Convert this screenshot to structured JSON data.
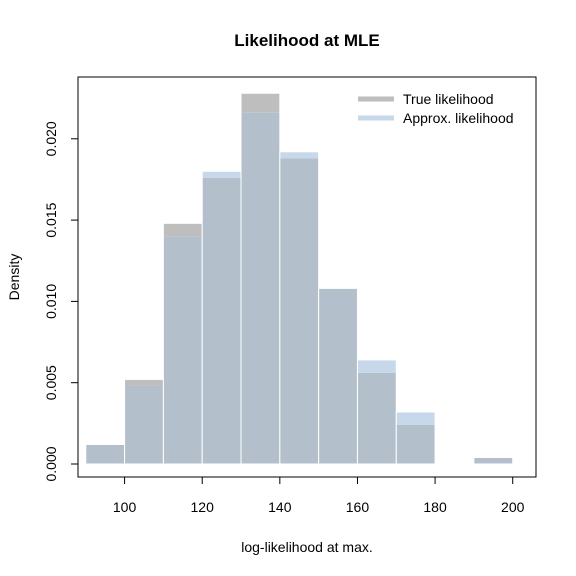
{
  "chart_data": {
    "type": "bar",
    "title": "Likelihood at MLE",
    "xlabel": "log-likelihood at max.",
    "ylabel": "Density",
    "xlim": [
      88,
      206
    ],
    "ylim": [
      -0.0008,
      0.0238
    ],
    "bin_edges": [
      90,
      100,
      110,
      120,
      130,
      140,
      150,
      160,
      170,
      180,
      190,
      200
    ],
    "x_ticks": [
      100,
      120,
      140,
      160,
      180,
      200
    ],
    "y_ticks": [
      0.0,
      0.005,
      0.01,
      0.015,
      0.02
    ],
    "y_tick_labels": [
      "0.000",
      "0.005",
      "0.010",
      "0.015",
      "0.020"
    ],
    "grid": false,
    "legend_position": "top-right",
    "series": [
      {
        "name": "True likelihood",
        "color": "#bebebe",
        "values": [
          0.0012,
          0.0052,
          0.0148,
          0.0176,
          0.0228,
          0.0188,
          0.0108,
          0.0056,
          0.0024,
          0.0,
          0.0004
        ]
      },
      {
        "name": "Approx. likelihood",
        "color": "#c6d8ea",
        "values": [
          0.0012,
          0.0048,
          0.014,
          0.018,
          0.0216,
          0.0192,
          0.0108,
          0.0064,
          0.0032,
          0.0,
          0.0004
        ]
      }
    ],
    "overlap_color": "#b3c0cb",
    "bar_edge_color": "#ffffff"
  }
}
